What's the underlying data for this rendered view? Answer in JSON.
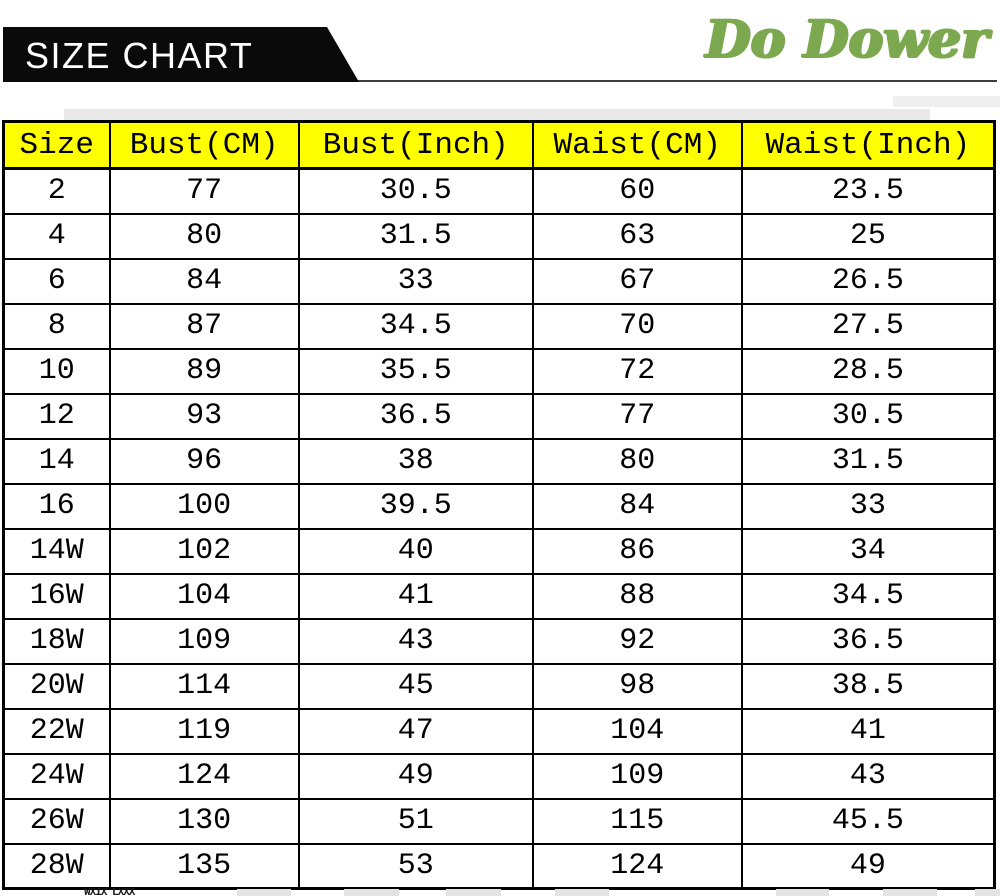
{
  "header": {
    "banner_label": "SIZE CHART",
    "brand_logo_text": "Do Dower",
    "brand_color": "#7CA84F",
    "banner_bg": "#0a0a0a"
  },
  "table": {
    "header_bg": "#FFFF00",
    "columns": [
      "Size",
      "Bust(CM)",
      "Bust(Inch)",
      "Waist(CM)",
      "Waist(Inch)"
    ],
    "rows": [
      [
        "2",
        "77",
        "30.5",
        "60",
        "23.5"
      ],
      [
        "4",
        "80",
        "31.5",
        "63",
        "25"
      ],
      [
        "6",
        "84",
        "33",
        "67",
        "26.5"
      ],
      [
        "8",
        "87",
        "34.5",
        "70",
        "27.5"
      ],
      [
        "10",
        "89",
        "35.5",
        "72",
        "28.5"
      ],
      [
        "12",
        "93",
        "36.5",
        "77",
        "30.5"
      ],
      [
        "14",
        "96",
        "38",
        "80",
        "31.5"
      ],
      [
        "16",
        "100",
        "39.5",
        "84",
        "33"
      ],
      [
        "14W",
        "102",
        "40",
        "86",
        "34"
      ],
      [
        "16W",
        "104",
        "41",
        "88",
        "34.5"
      ],
      [
        "18W",
        "109",
        "43",
        "92",
        "36.5"
      ],
      [
        "20W",
        "114",
        "45",
        "98",
        "38.5"
      ],
      [
        "22W",
        "119",
        "47",
        "104",
        "41"
      ],
      [
        "24W",
        "124",
        "49",
        "109",
        "43"
      ],
      [
        "26W",
        "130",
        "51",
        "115",
        "45.5"
      ],
      [
        "28W",
        "135",
        "53",
        "124",
        "49"
      ]
    ]
  },
  "footer": {
    "cropped_text_fragment": "WXIX LXXX"
  }
}
